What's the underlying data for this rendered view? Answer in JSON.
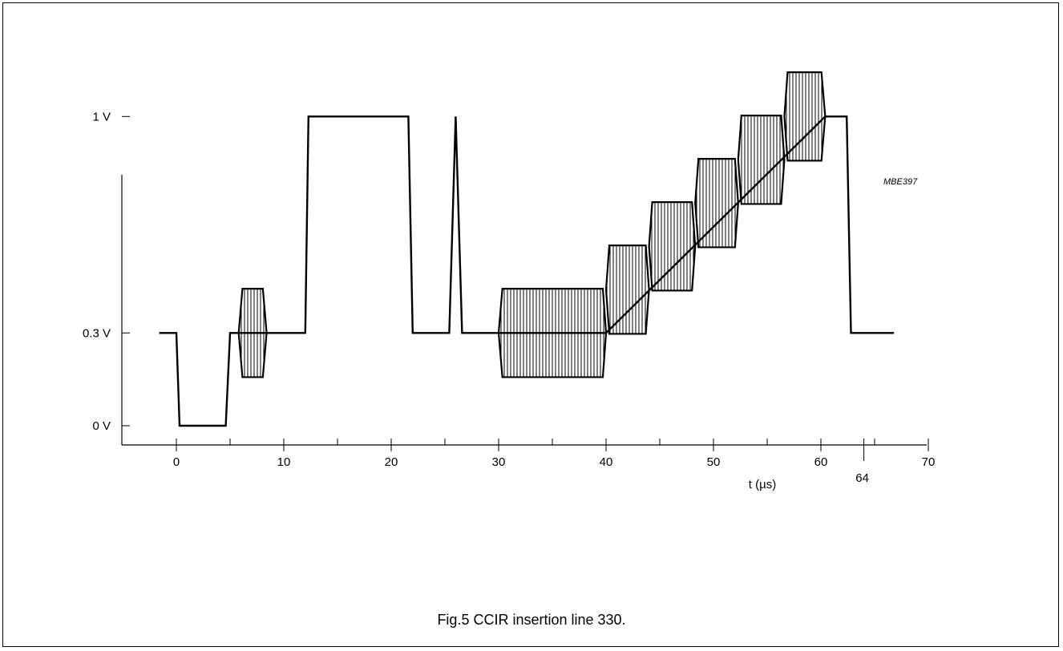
{
  "figure": {
    "code": "MBE397",
    "caption": "Fig.5  CCIR insertion line 330."
  },
  "chart_data": {
    "type": "line",
    "title": "",
    "xlabel": "t (µs)",
    "ylabel": "",
    "xlim": [
      -5,
      70
    ],
    "ylim": [
      0,
      1.155
    ],
    "x_ticks": [
      {
        "value": 0,
        "label": "0"
      },
      {
        "value": 10,
        "label": "10"
      },
      {
        "value": 20,
        "label": "20"
      },
      {
        "value": 30,
        "label": "30"
      },
      {
        "value": 40,
        "label": "40"
      },
      {
        "value": 50,
        "label": "50"
      },
      {
        "value": 60,
        "label": "60"
      },
      {
        "value": 70,
        "label": "70"
      }
    ],
    "x_minor_ticks": [
      5,
      15,
      25,
      35,
      45,
      55,
      65
    ],
    "x_special_tick": {
      "value": 64,
      "label": "64"
    },
    "y_ticks": [
      {
        "value": 0,
        "label": "0 V"
      },
      {
        "value": 0.3,
        "label": "0.3 V"
      },
      {
        "value": 1.0,
        "label": "1 V"
      }
    ],
    "waveform": [
      [
        -1.6,
        0.3
      ],
      [
        0,
        0.3
      ],
      [
        0.3,
        0
      ],
      [
        4.6,
        0
      ],
      [
        5.0,
        0.3
      ],
      [
        5.8,
        0.3
      ],
      [
        8.4,
        0.3
      ],
      [
        12.0,
        0.3
      ],
      [
        12.3,
        1.0
      ],
      [
        21.6,
        1.0
      ],
      [
        22.0,
        0.3
      ],
      [
        25.4,
        0.3
      ],
      [
        26.0,
        1.0
      ],
      [
        26.6,
        0.3
      ],
      [
        29.9,
        0.3
      ],
      [
        30.2,
        0.3
      ],
      [
        40.0,
        0.3
      ],
      [
        60.4,
        1.0
      ],
      [
        62.4,
        1.0
      ],
      [
        62.8,
        0.3
      ],
      [
        66.8,
        0.3
      ]
    ],
    "bursts": [
      {
        "x_start": 5.8,
        "x_end": 8.4,
        "center": 0.3,
        "amplitude": 0.143
      },
      {
        "x_start": 30.0,
        "x_end": 40.0,
        "center": 0.3,
        "amplitude": 0.143
      },
      {
        "x_start": 40.0,
        "x_end": 44.0,
        "center": 0.44,
        "amplitude": 0.143
      },
      {
        "x_start": 44.0,
        "x_end": 48.3,
        "center": 0.58,
        "amplitude": 0.143
      },
      {
        "x_start": 48.3,
        "x_end": 52.3,
        "center": 0.72,
        "amplitude": 0.143
      },
      {
        "x_start": 52.3,
        "x_end": 56.6,
        "center": 0.86,
        "amplitude": 0.143
      },
      {
        "x_start": 56.6,
        "x_end": 60.4,
        "center": 1.0,
        "amplitude": 0.143
      }
    ]
  }
}
